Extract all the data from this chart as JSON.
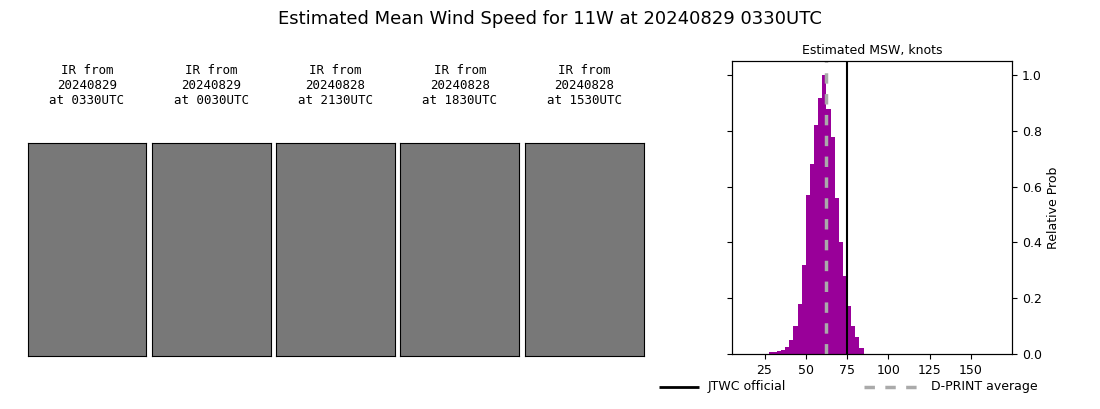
{
  "title": "Estimated Mean Wind Speed for 11W at 20240829 0330UTC",
  "histogram_title": "Estimated MSW, knots",
  "ylabel_right": "Relative Prob",
  "jtwc_official": 75,
  "dprint_average": 62.5,
  "bar_color": "#990099",
  "bar_width": 2.5,
  "xlim": [
    5,
    175
  ],
  "xticks": [
    25,
    50,
    75,
    100,
    125,
    150
  ],
  "ylim": [
    0,
    1.05
  ],
  "yticks": [
    0.0,
    0.2,
    0.4,
    0.6,
    0.8,
    1.0
  ],
  "legend_jtwc": "JTWC official",
  "legend_dprint": "D-PRINT average",
  "ir_labels": [
    "IR from\n20240829\nat 0330UTC",
    "IR from\n20240829\nat 0030UTC",
    "IR from\n20240828\nat 2130UTC",
    "IR from\n20240828\nat 1830UTC",
    "IR from\n20240828\nat 1530UTC"
  ],
  "hist_bins_left": [
    27.5,
    30,
    32.5,
    35,
    37.5,
    40,
    42.5,
    45,
    47.5,
    50,
    52.5,
    55,
    57.5,
    60,
    62.5,
    65,
    67.5,
    70,
    72.5,
    75,
    77.5,
    80,
    82.5
  ],
  "hist_values": [
    0.008,
    0.008,
    0.01,
    0.015,
    0.025,
    0.05,
    0.1,
    0.18,
    0.32,
    0.57,
    0.68,
    0.82,
    0.92,
    1.0,
    0.88,
    0.78,
    0.56,
    0.4,
    0.28,
    0.17,
    0.1,
    0.06,
    0.02
  ]
}
